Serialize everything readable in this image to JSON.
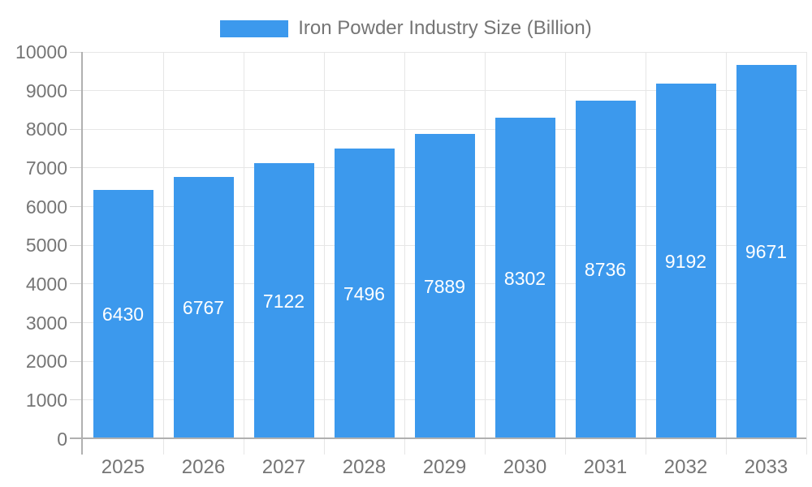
{
  "legend": {
    "label": "Iron Powder Industry Size (Billion)"
  },
  "colors": {
    "bar": "#3C99ED",
    "text": "#757575",
    "grid": "#E6E6E6",
    "tick": "#D4D4D4",
    "axis": "#B0B0B0",
    "value_label": "#FFFFFF",
    "background": "#FFFFFF"
  },
  "chart_data": {
    "type": "bar",
    "title": "Iron Powder Industry Size (Billion)",
    "categories": [
      "2025",
      "2026",
      "2027",
      "2028",
      "2029",
      "2030",
      "2031",
      "2032",
      "2033"
    ],
    "values": [
      6430,
      6767,
      7122,
      7496,
      7889,
      8302,
      8736,
      9192,
      9671
    ],
    "xlabel": "",
    "ylabel": "",
    "ylim": [
      0,
      10000
    ],
    "y_ticks": [
      0,
      1000,
      2000,
      3000,
      4000,
      5000,
      6000,
      7000,
      8000,
      9000,
      10000
    ],
    "grid": true,
    "legend_position": "top",
    "value_label_position": "inside-center"
  }
}
